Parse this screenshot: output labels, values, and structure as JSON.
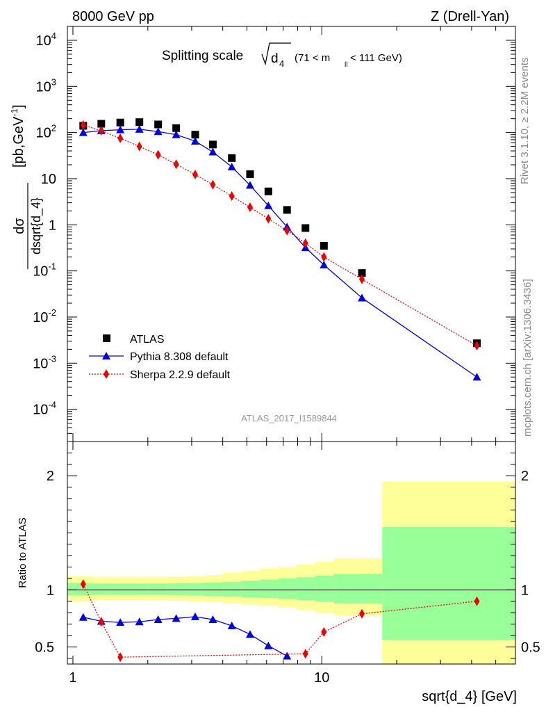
{
  "header": {
    "left": "8000 GeV pp",
    "right": "Z (Drell-Yan)"
  },
  "side_labels": {
    "rivet": "Rivet 3.1.10, ≥ 2.2M events",
    "mcplots": "mcplots.cern.ch [arXiv:1306.3436]"
  },
  "watermark": "ATLAS_2017_I1589844",
  "chart_data": [
    {
      "type": "scatter",
      "panel": "main",
      "title": "Splitting scale √d4 (71 < m_ll < 111 GeV)",
      "title_parts": {
        "prefix": "Splitting scale",
        "sub_d": "d",
        "sub_4": "4",
        "range_a": "(71 < m",
        "range_sub": "ll",
        "range_b": " < 111 GeV)"
      },
      "ylabel": "dσ / dsqrt{d_4} [pb,GeV⁻¹]",
      "ylabel_parts": {
        "num": "dσ",
        "den": "dsqrt{d_4}",
        "unit": "[pb,GeV",
        "unit_exp": "-1",
        "unit_end": "]"
      },
      "xscale": "log",
      "yscale": "log",
      "xlim": [
        0.95,
        60
      ],
      "ylim": [
        2e-05,
        20000
      ],
      "legend_position": "lower-left",
      "y_tick_labels": [
        {
          "base": "10",
          "exp": "-4",
          "v": 0.0001
        },
        {
          "base": "10",
          "exp": "-3",
          "v": 0.001
        },
        {
          "base": "10",
          "exp": "-2",
          "v": 0.01
        },
        {
          "base": "10",
          "exp": "-1",
          "v": 0.1
        },
        {
          "base": "1",
          "exp": "",
          "v": 1
        },
        {
          "base": "10",
          "exp": "",
          "v": 10
        },
        {
          "base": "10",
          "exp": "2",
          "v": 100
        },
        {
          "base": "10",
          "exp": "3",
          "v": 1000
        },
        {
          "base": "10",
          "exp": "4",
          "v": 10000
        }
      ],
      "series": [
        {
          "name": "ATLAS",
          "marker": "square",
          "color": "#000000",
          "x": [
            1.1,
            1.3,
            1.55,
            1.85,
            2.2,
            2.6,
            3.1,
            3.65,
            4.35,
            5.15,
            6.1,
            7.25,
            8.6,
            10.2,
            14.5,
            42
          ],
          "y": [
            140,
            155,
            165,
            168,
            150,
            125,
            90,
            55,
            28,
            12.5,
            5.3,
            2.1,
            0.85,
            0.35,
            0.09,
            0.0027
          ]
        },
        {
          "name": "Pythia 8.308 default",
          "marker": "triangle",
          "line": "solid",
          "color": "#0000dd",
          "x": [
            1.1,
            1.3,
            1.55,
            1.85,
            2.2,
            2.6,
            3.1,
            3.65,
            4.35,
            5.15,
            6.1,
            7.25,
            8.6,
            10.2,
            14.5,
            42
          ],
          "y": [
            100,
            110,
            115,
            118,
            105,
            90,
            65,
            38,
            18,
            7.2,
            2.6,
            0.9,
            0.32,
            0.135,
            0.026,
            0.0005
          ]
        },
        {
          "name": "Sherpa 2.2.9 default",
          "marker": "diamond",
          "line": "dotted",
          "color": "#ee0000",
          "x": [
            1.1,
            1.3,
            1.55,
            1.85,
            2.2,
            2.6,
            3.1,
            3.65,
            4.35,
            5.15,
            6.1,
            7.25,
            8.6,
            10.2,
            14.5,
            42
          ],
          "y": [
            145,
            110,
            75,
            50,
            33,
            20.5,
            12.3,
            7.4,
            4.2,
            2.4,
            1.35,
            0.75,
            0.4,
            0.2,
            0.066,
            0.0024
          ]
        }
      ]
    },
    {
      "type": "scatter",
      "panel": "ratio",
      "ylabel": "Ratio to ATLAS",
      "xlabel": "sqrt{d_4} [GeV]",
      "xscale": "log",
      "xlim": [
        0.95,
        60
      ],
      "ylim": [
        0.35,
        2.3
      ],
      "x_tick_labels": [
        {
          "label": "1",
          "v": 1
        },
        {
          "label": "10",
          "v": 10
        }
      ],
      "y_tick_labels": [
        {
          "label": "0.5",
          "v": 0.5
        },
        {
          "label": "1",
          "v": 1
        },
        {
          "label": "2",
          "v": 2
        }
      ],
      "bands": [
        {
          "x0": 0.95,
          "x1": 1.2,
          "y_lo": 0.9,
          "y_hi": 1.12,
          "g_lo": 0.95,
          "g_hi": 1.06
        },
        {
          "x0": 1.2,
          "x1": 1.42,
          "y_lo": 0.91,
          "y_hi": 1.11,
          "g_lo": 0.955,
          "g_hi": 1.055
        },
        {
          "x0": 1.42,
          "x1": 1.7,
          "y_lo": 0.91,
          "y_hi": 1.11,
          "g_lo": 0.955,
          "g_hi": 1.055
        },
        {
          "x0": 1.7,
          "x1": 2.02,
          "y_lo": 0.91,
          "y_hi": 1.11,
          "g_lo": 0.955,
          "g_hi": 1.055
        },
        {
          "x0": 2.02,
          "x1": 2.4,
          "y_lo": 0.91,
          "y_hi": 1.11,
          "g_lo": 0.955,
          "g_hi": 1.055
        },
        {
          "x0": 2.4,
          "x1": 2.85,
          "y_lo": 0.905,
          "y_hi": 1.115,
          "g_lo": 0.952,
          "g_hi": 1.058
        },
        {
          "x0": 2.85,
          "x1": 3.38,
          "y_lo": 0.9,
          "y_hi": 1.12,
          "g_lo": 0.95,
          "g_hi": 1.06
        },
        {
          "x0": 3.38,
          "x1": 4.0,
          "y_lo": 0.895,
          "y_hi": 1.13,
          "g_lo": 0.945,
          "g_hi": 1.065
        },
        {
          "x0": 4.0,
          "x1": 4.75,
          "y_lo": 0.88,
          "y_hi": 1.15,
          "g_lo": 0.94,
          "g_hi": 1.07
        },
        {
          "x0": 4.75,
          "x1": 5.62,
          "y_lo": 0.87,
          "y_hi": 1.165,
          "g_lo": 0.935,
          "g_hi": 1.08
        },
        {
          "x0": 5.62,
          "x1": 6.68,
          "y_lo": 0.86,
          "y_hi": 1.185,
          "g_lo": 0.93,
          "g_hi": 1.09
        },
        {
          "x0": 6.68,
          "x1": 7.92,
          "y_lo": 0.845,
          "y_hi": 1.2,
          "g_lo": 0.92,
          "g_hi": 1.1
        },
        {
          "x0": 7.92,
          "x1": 9.4,
          "y_lo": 0.825,
          "y_hi": 1.22,
          "g_lo": 0.91,
          "g_hi": 1.11
        },
        {
          "x0": 9.4,
          "x1": 11.2,
          "y_lo": 0.8,
          "y_hi": 1.245,
          "g_lo": 0.895,
          "g_hi": 1.125
        },
        {
          "x0": 11.2,
          "x1": 17.5,
          "y_lo": 0.775,
          "y_hi": 1.275,
          "g_lo": 0.88,
          "g_hi": 1.14
        },
        {
          "x0": 17.5,
          "x1": 60,
          "y_lo": 0.35,
          "y_hi": 1.95,
          "g_lo": 0.56,
          "g_hi": 1.55
        }
      ],
      "series": [
        {
          "name": "Pythia 8.308 default",
          "marker": "triangle",
          "line": "solid",
          "color": "#0000dd",
          "x": [
            1.1,
            1.3,
            1.55,
            1.85,
            2.2,
            2.6,
            3.1,
            3.65,
            4.35,
            5.15,
            6.1,
            7.25
          ],
          "y": [
            0.76,
            0.725,
            0.715,
            0.72,
            0.74,
            0.75,
            0.765,
            0.74,
            0.685,
            0.61,
            0.51,
            0.42
          ]
        },
        {
          "name": "Sherpa 2.2.9 default",
          "marker": "diamond",
          "line": "dotted",
          "color": "#ee0000",
          "x": [
            1.1,
            1.3,
            1.55,
            8.6,
            10.2,
            14.5,
            42
          ],
          "y": [
            1.05,
            0.72,
            0.41,
            0.44,
            0.63,
            0.79,
            0.9
          ]
        }
      ]
    }
  ]
}
